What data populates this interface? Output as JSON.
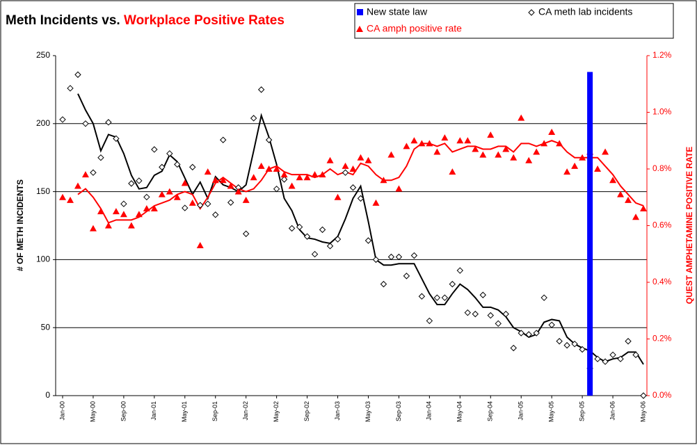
{
  "chart_data": {
    "type": "line",
    "title": "Meth Incidents vs.",
    "title_highlight": "Workplace Positive Rates",
    "ylabel": "# OF METH INCIDENTS",
    "y2label": "QUEST AMPHETAMINE POSITIVE RATE",
    "categories": [
      "Jan-00",
      null,
      null,
      null,
      "May-00",
      null,
      null,
      null,
      "Sep-00",
      null,
      null,
      null,
      "Jan-01",
      null,
      null,
      null,
      "May-01",
      null,
      null,
      null,
      "Sep-01",
      null,
      null,
      null,
      "Jan-02",
      null,
      null,
      null,
      "May-02",
      null,
      null,
      null,
      "Sep-02",
      null,
      null,
      null,
      "Jan-03",
      null,
      null,
      null,
      "May-03",
      null,
      null,
      null,
      "Sep-03",
      null,
      null,
      null,
      "Jan-04",
      null,
      null,
      null,
      "May-04",
      null,
      null,
      null,
      "Sep-04",
      null,
      null,
      null,
      "Jan-05",
      null,
      null,
      null,
      "May-05",
      null,
      null,
      null,
      "Sep-05",
      null,
      null,
      null,
      "Jan-06",
      null,
      null,
      null,
      "May-06"
    ],
    "ylim": [
      0,
      250
    ],
    "yticks": [
      0,
      50,
      100,
      150,
      200,
      250
    ],
    "y2lim": [
      0,
      1.2
    ],
    "y2ticks": [
      {
        "value": 0,
        "label": "0.0%"
      },
      {
        "value": 0.2,
        "label": "0.2%"
      },
      {
        "value": 0.4,
        "label": "0.4%"
      },
      {
        "value": 0.6,
        "label": "0.6%"
      },
      {
        "value": 0.8,
        "label": "0.8%"
      },
      {
        "value": 1.0,
        "label": "1.0%"
      },
      {
        "value": 1.2,
        "label": "1.2%"
      }
    ],
    "grid": true,
    "legend": "top-right",
    "series": [
      {
        "name": "New state law",
        "type": "bar",
        "color": "#0000ff",
        "values": [
          null,
          null,
          null,
          null,
          null,
          null,
          null,
          null,
          null,
          null,
          null,
          null,
          null,
          null,
          null,
          null,
          null,
          null,
          null,
          null,
          null,
          null,
          null,
          null,
          null,
          null,
          null,
          null,
          null,
          null,
          null,
          null,
          null,
          null,
          null,
          null,
          null,
          null,
          null,
          null,
          null,
          null,
          null,
          null,
          null,
          null,
          null,
          null,
          null,
          null,
          null,
          null,
          null,
          null,
          null,
          null,
          null,
          null,
          null,
          null,
          null,
          null,
          null,
          null,
          null,
          null,
          null,
          null,
          null,
          238,
          null,
          null,
          null,
          null,
          null,
          null,
          null
        ]
      },
      {
        "name": "CA meth lab incidents",
        "type": "scatter",
        "marker": "diamond",
        "color": "#000000",
        "values": [
          203,
          226,
          236,
          200,
          164,
          175,
          201,
          189,
          141,
          156,
          158,
          146,
          181,
          168,
          178,
          170,
          138,
          168,
          140,
          141,
          133,
          188,
          142,
          153,
          119,
          204,
          225,
          188,
          152,
          159,
          123,
          124,
          117,
          104,
          122,
          110,
          115,
          164,
          153,
          145,
          114,
          100,
          82,
          102,
          102,
          88,
          103,
          73,
          55,
          72,
          72,
          82,
          92,
          61,
          60,
          74,
          59,
          53,
          60,
          35,
          46,
          45,
          46,
          72,
          52,
          40,
          37,
          38,
          34,
          20,
          27,
          25,
          30,
          27,
          40,
          30,
          0
        ]
      },
      {
        "name": "CA amph positive rate",
        "type": "scatter",
        "marker": "triangle",
        "color": "#ff0000",
        "axis": "y2",
        "values": [
          0.7,
          0.69,
          0.74,
          0.78,
          0.59,
          0.65,
          0.6,
          0.65,
          0.64,
          0.6,
          0.64,
          0.66,
          0.66,
          0.71,
          0.72,
          0.7,
          0.75,
          0.68,
          0.53,
          0.79,
          0.76,
          0.76,
          0.74,
          0.72,
          0.69,
          0.77,
          0.81,
          0.8,
          0.8,
          0.78,
          0.74,
          0.77,
          0.77,
          0.78,
          0.78,
          0.83,
          0.7,
          0.81,
          0.8,
          0.84,
          0.83,
          0.68,
          0.76,
          0.85,
          0.73,
          0.88,
          0.9,
          0.89,
          0.89,
          0.86,
          0.91,
          0.79,
          0.9,
          0.9,
          0.87,
          0.85,
          0.92,
          0.85,
          0.87,
          0.84,
          0.98,
          0.83,
          0.86,
          0.89,
          0.93,
          0.89,
          0.79,
          0.81,
          0.84,
          0.86,
          0.8,
          0.86,
          0.76,
          0.71,
          0.69,
          0.63,
          0.66
        ]
      },
      {
        "type": "line",
        "color": "#000000",
        "values": [
          null,
          null,
          222,
          210,
          200,
          180,
          192,
          190,
          178,
          162,
          152,
          153,
          162,
          165,
          177,
          172,
          160,
          148,
          157,
          145,
          161,
          155,
          153,
          150,
          155,
          180,
          206,
          190,
          170,
          145,
          136,
          122,
          116,
          115,
          113,
          112,
          117,
          130,
          145,
          154,
          128,
          100,
          96,
          96,
          97,
          97,
          97,
          86,
          75,
          67,
          67,
          75,
          82,
          78,
          72,
          65,
          65,
          63,
          58,
          50,
          47,
          43,
          45,
          54,
          56,
          55,
          43,
          38,
          35,
          33,
          28,
          25,
          27,
          28,
          32,
          32,
          23
        ]
      },
      {
        "type": "line",
        "color": "#ff0000",
        "axis": "y2",
        "values": [
          null,
          null,
          0.71,
          0.73,
          0.7,
          0.66,
          0.61,
          0.62,
          0.62,
          0.62,
          0.63,
          0.65,
          0.67,
          0.68,
          0.69,
          0.71,
          0.72,
          0.71,
          0.66,
          0.7,
          0.75,
          0.77,
          0.75,
          0.73,
          0.72,
          0.73,
          0.76,
          0.8,
          0.81,
          0.79,
          0.78,
          0.78,
          0.78,
          0.77,
          0.78,
          0.8,
          0.78,
          0.79,
          0.78,
          0.82,
          0.81,
          0.78,
          0.76,
          0.76,
          0.77,
          0.81,
          0.87,
          0.89,
          0.89,
          0.88,
          0.89,
          0.86,
          0.87,
          0.88,
          0.88,
          0.87,
          0.87,
          0.88,
          0.88,
          0.86,
          0.89,
          0.89,
          0.88,
          0.89,
          0.9,
          0.89,
          0.86,
          0.84,
          0.84,
          0.84,
          0.84,
          0.81,
          0.78,
          0.74,
          0.71,
          0.68,
          0.67
        ]
      }
    ]
  }
}
